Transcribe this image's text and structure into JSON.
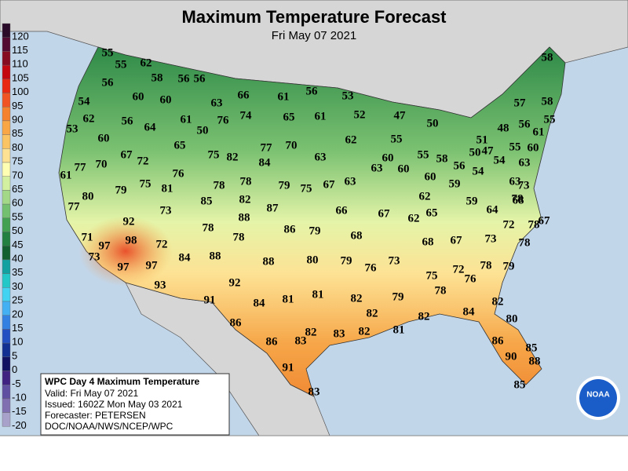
{
  "title": "Maximum Temperature Forecast",
  "subtitle": "Fri May 07 2021",
  "legend": {
    "ticks": [
      {
        "value": 120,
        "color": "#2a0c2a"
      },
      {
        "value": 115,
        "color": "#520c34"
      },
      {
        "value": 110,
        "color": "#860c22"
      },
      {
        "value": 105,
        "color": "#c40812"
      },
      {
        "value": 100,
        "color": "#e82812"
      },
      {
        "value": 95,
        "color": "#f05424"
      },
      {
        "value": 90,
        "color": "#f4822e"
      },
      {
        "value": 85,
        "color": "#f8a646"
      },
      {
        "value": 80,
        "color": "#fac464"
      },
      {
        "value": 75,
        "color": "#fde294"
      },
      {
        "value": 70,
        "color": "#ffffb4"
      },
      {
        "value": 65,
        "color": "#d2f0a0"
      },
      {
        "value": 60,
        "color": "#a2d888"
      },
      {
        "value": 55,
        "color": "#72c070"
      },
      {
        "value": 50,
        "color": "#42a052"
      },
      {
        "value": 45,
        "color": "#228040"
      },
      {
        "value": 40,
        "color": "#126030"
      },
      {
        "value": 35,
        "color": "#12a0a0"
      },
      {
        "value": 30,
        "color": "#22c8c8"
      },
      {
        "value": 25,
        "color": "#42d2f2"
      },
      {
        "value": 20,
        "color": "#42b0f2"
      },
      {
        "value": 15,
        "color": "#3280e2"
      },
      {
        "value": 10,
        "color": "#2250c2"
      },
      {
        "value": 5,
        "color": "#123092"
      },
      {
        "value": 0,
        "color": "#121262"
      },
      {
        "value": -5,
        "color": "#402282"
      },
      {
        "value": -10,
        "color": "#6050a2"
      },
      {
        "value": -15,
        "color": "#8070b2"
      },
      {
        "value": -20,
        "color": "#a8a2ca"
      }
    ]
  },
  "info_box": {
    "title": "WPC Day 4 Maximum Temperature",
    "lines": [
      "Valid: Fri May 07 2021",
      "Issued: 1602Z Mon May 03 2021",
      "Forecaster: PETERSEN",
      "DOC/NOAA/NWS/NCEP/WPC"
    ]
  },
  "logo": "NOAA",
  "temperatures": [
    55,
    55,
    62,
    58,
    56,
    56,
    56,
    54,
    60,
    60,
    63,
    66,
    61,
    56,
    53,
    58,
    62,
    56,
    64,
    61,
    50,
    76,
    74,
    65,
    61,
    52,
    47,
    50,
    57,
    58,
    55,
    48,
    56,
    61,
    53,
    60,
    65,
    62,
    55,
    51,
    47,
    55,
    60,
    50,
    77,
    70,
    67,
    72,
    75,
    82,
    63,
    60,
    55,
    58,
    56,
    54,
    63,
    61,
    77,
    70,
    76,
    84,
    78,
    63,
    60,
    60,
    59,
    54,
    63,
    73,
    79,
    75,
    81,
    78,
    79,
    75,
    67,
    63,
    62,
    78,
    80,
    85,
    82,
    59,
    64,
    68,
    77,
    73,
    87,
    66,
    67,
    62,
    65,
    88,
    72,
    67,
    78,
    92,
    78,
    86,
    79,
    71,
    98,
    78,
    68,
    68,
    67,
    73,
    78,
    97,
    72,
    73,
    84,
    88,
    88,
    80,
    79,
    73,
    76,
    97,
    97,
    78,
    79,
    72,
    75,
    76,
    92,
    93,
    78,
    81,
    81,
    79,
    82,
    91,
    84,
    82,
    82,
    82,
    84,
    80,
    86,
    82,
    83,
    82,
    81,
    86,
    83,
    86,
    85,
    90,
    88,
    91,
    85,
    83
  ]
}
